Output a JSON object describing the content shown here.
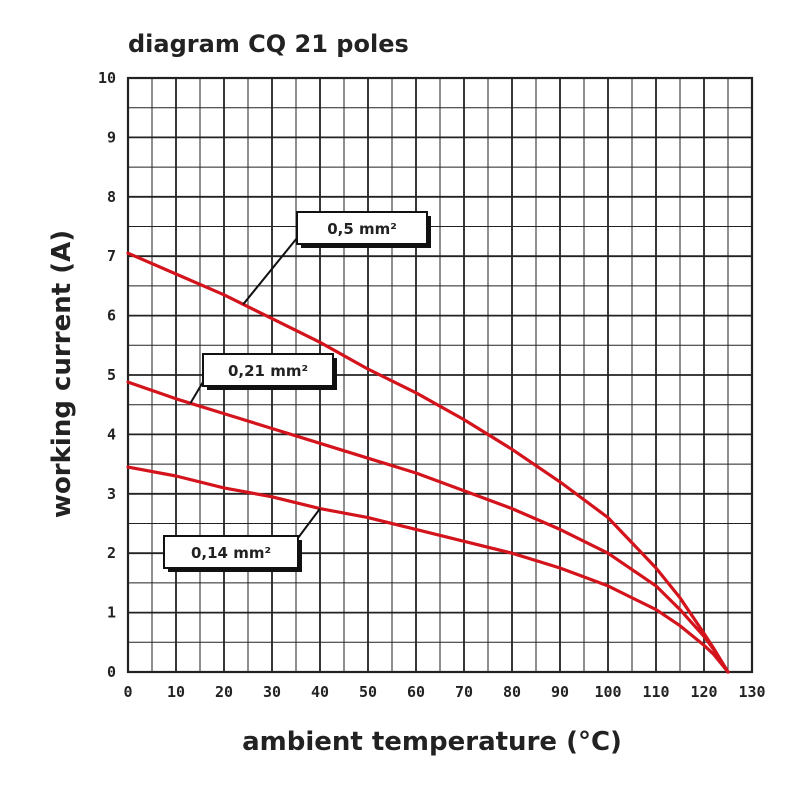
{
  "chart_data": {
    "type": "line",
    "title": "diagram CQ 21 poles",
    "xlabel": "ambient temperature (°C)",
    "ylabel": "working current (A)",
    "xlim": [
      0,
      130
    ],
    "ylim": [
      0,
      10
    ],
    "x_ticks": [
      "0",
      "10",
      "20",
      "30",
      "40",
      "50",
      "60",
      "70",
      "80",
      "90",
      "100",
      "110",
      "120",
      "130"
    ],
    "y_ticks": [
      "0",
      "1",
      "2",
      "3",
      "4",
      "5",
      "6",
      "7",
      "8",
      "9",
      "10"
    ],
    "grid": true,
    "colors": {
      "series": "#d4141c",
      "grid": "#222222",
      "background": "#ffffff"
    },
    "series": [
      {
        "name": "0,5 mm²",
        "x": [
          0,
          10,
          20,
          30,
          40,
          50,
          60,
          70,
          80,
          90,
          100,
          110,
          115,
          120,
          122,
          125
        ],
        "y": [
          7.05,
          6.7,
          6.35,
          5.95,
          5.55,
          5.1,
          4.7,
          4.25,
          3.75,
          3.2,
          2.6,
          1.75,
          1.25,
          0.65,
          0.4,
          0
        ]
      },
      {
        "name": "0,21 mm²",
        "x": [
          0,
          10,
          20,
          30,
          40,
          50,
          60,
          70,
          80,
          90,
          100,
          110,
          115,
          120,
          122,
          125
        ],
        "y": [
          4.88,
          4.6,
          4.35,
          4.1,
          3.85,
          3.6,
          3.35,
          3.05,
          2.75,
          2.4,
          2.0,
          1.45,
          1.05,
          0.6,
          0.38,
          0
        ]
      },
      {
        "name": "0,14 mm²",
        "x": [
          0,
          10,
          20,
          30,
          40,
          50,
          60,
          70,
          80,
          90,
          100,
          110,
          115,
          120,
          122,
          125
        ],
        "y": [
          3.45,
          3.3,
          3.1,
          2.95,
          2.75,
          2.6,
          2.4,
          2.2,
          2.0,
          1.75,
          1.45,
          1.05,
          0.78,
          0.45,
          0.3,
          0
        ]
      }
    ]
  }
}
